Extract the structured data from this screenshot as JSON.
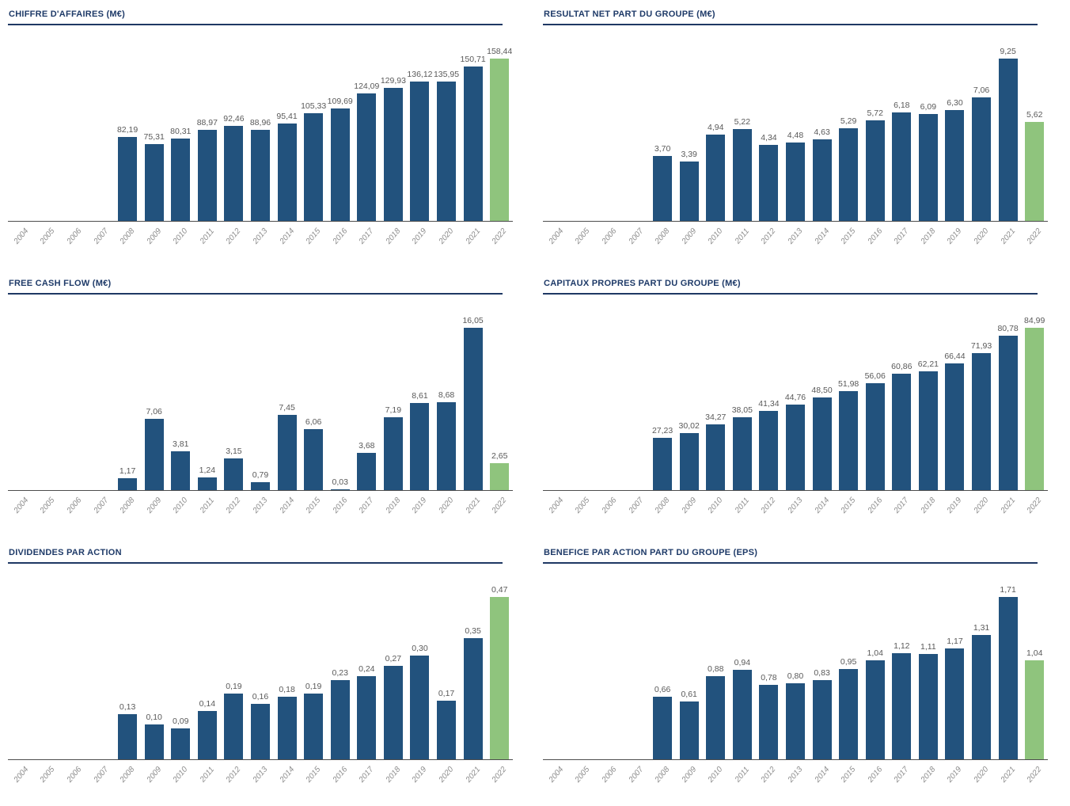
{
  "colors": {
    "bar_primary": "#22527d",
    "bar_highlight": "#8fc47d",
    "title_text": "#1e3a68",
    "title_rule": "#1f3864",
    "axis_line": "#4d4d4d",
    "value_label": "#595959",
    "year_label": "#8c8c8c",
    "background": "#ffffff"
  },
  "chart_data": [
    {
      "type": "bar",
      "title": "CHIFFRE D'AFFAIRES (M€)",
      "categories": [
        "2004",
        "2005",
        "2006",
        "2007",
        "2008",
        "2009",
        "2010",
        "2011",
        "2012",
        "2013",
        "2014",
        "2015",
        "2016",
        "2017",
        "2018",
        "2019",
        "2020",
        "2021",
        "2022"
      ],
      "values": [
        null,
        null,
        null,
        null,
        82.19,
        75.31,
        80.31,
        88.97,
        92.46,
        88.96,
        95.41,
        105.33,
        109.69,
        124.09,
        129.93,
        136.12,
        135.95,
        150.71,
        158.44
      ],
      "labels": [
        null,
        null,
        null,
        null,
        "82,19",
        "75,31",
        "80,31",
        "88,97",
        "92,46",
        "88,96",
        "95,41",
        "105,33",
        "109,69",
        "124,09",
        "129,93",
        "136,12",
        "135,95",
        "150,71",
        "158,44"
      ],
      "highlight_index": 18,
      "xlabel": "",
      "ylabel": "",
      "grid": false,
      "legend": "none",
      "data_labels": "above bars"
    },
    {
      "type": "bar",
      "title": "RESULTAT NET PART DU GROUPE (M€)",
      "categories": [
        "2004",
        "2005",
        "2006",
        "2007",
        "2008",
        "2009",
        "2010",
        "2011",
        "2012",
        "2013",
        "2014",
        "2015",
        "2016",
        "2017",
        "2018",
        "2019",
        "2020",
        "2021",
        "2022"
      ],
      "values": [
        null,
        null,
        null,
        null,
        3.7,
        3.39,
        4.94,
        5.22,
        4.34,
        4.48,
        4.63,
        5.29,
        5.72,
        6.18,
        6.09,
        6.3,
        7.06,
        9.25,
        5.62
      ],
      "labels": [
        null,
        null,
        null,
        null,
        "3,70",
        "3,39",
        "4,94",
        "5,22",
        "4,34",
        "4,48",
        "4,63",
        "5,29",
        "5,72",
        "6,18",
        "6,09",
        "6,30",
        "7,06",
        "9,25",
        "5,62"
      ],
      "highlight_index": 18,
      "xlabel": "",
      "ylabel": "",
      "grid": false,
      "legend": "none",
      "data_labels": "above bars"
    },
    {
      "type": "bar",
      "title": "FREE CASH FLOW (M€)",
      "categories": [
        "2004",
        "2005",
        "2006",
        "2007",
        "2008",
        "2009",
        "2010",
        "2011",
        "2012",
        "2013",
        "2014",
        "2015",
        "2016",
        "2017",
        "2018",
        "2019",
        "2020",
        "2021",
        "2022"
      ],
      "values": [
        null,
        null,
        null,
        null,
        1.17,
        7.06,
        3.81,
        1.24,
        3.15,
        0.79,
        7.45,
        6.06,
        0.03,
        3.68,
        7.19,
        8.61,
        8.68,
        16.05,
        2.65
      ],
      "labels": [
        null,
        null,
        null,
        null,
        "1,17",
        "7,06",
        "3,81",
        "1,24",
        "3,15",
        "0,79",
        "7,45",
        "6,06",
        "0,03",
        "3,68",
        "7,19",
        "8,61",
        "8,68",
        "16,05",
        "2,65"
      ],
      "highlight_index": 18,
      "xlabel": "",
      "ylabel": "",
      "grid": false,
      "legend": "none",
      "data_labels": "above bars"
    },
    {
      "type": "bar",
      "title": "CAPITAUX PROPRES PART DU GROUPE (M€)",
      "categories": [
        "2004",
        "2005",
        "2006",
        "2007",
        "2008",
        "2009",
        "2010",
        "2011",
        "2012",
        "2013",
        "2014",
        "2015",
        "2016",
        "2017",
        "2018",
        "2019",
        "2020",
        "2021",
        "2022"
      ],
      "values": [
        null,
        null,
        null,
        null,
        27.23,
        30.02,
        34.27,
        38.05,
        41.34,
        44.76,
        48.5,
        51.98,
        56.06,
        60.86,
        62.21,
        66.44,
        71.93,
        80.78,
        84.99
      ],
      "labels": [
        null,
        null,
        null,
        null,
        "27,23",
        "30,02",
        "34,27",
        "38,05",
        "41,34",
        "44,76",
        "48,50",
        "51,98",
        "56,06",
        "60,86",
        "62,21",
        "66,44",
        "71,93",
        "80,78",
        "84,99"
      ],
      "highlight_index": 18,
      "xlabel": "",
      "ylabel": "",
      "grid": false,
      "legend": "none",
      "data_labels": "above bars"
    },
    {
      "type": "bar",
      "title": "DIVIDENDES PAR ACTION",
      "categories": [
        "2004",
        "2005",
        "2006",
        "2007",
        "2008",
        "2009",
        "2010",
        "2011",
        "2012",
        "2013",
        "2014",
        "2015",
        "2016",
        "2017",
        "2018",
        "2019",
        "2020",
        "2021",
        "2022"
      ],
      "values": [
        null,
        null,
        null,
        null,
        0.13,
        0.1,
        0.09,
        0.14,
        0.19,
        0.16,
        0.18,
        0.19,
        0.23,
        0.24,
        0.27,
        0.3,
        0.17,
        0.35,
        0.47
      ],
      "labels": [
        null,
        null,
        null,
        null,
        "0,13",
        "0,10",
        "0,09",
        "0,14",
        "0,19",
        "0,16",
        "0,18",
        "0,19",
        "0,23",
        "0,24",
        "0,27",
        "0,30",
        "0,17",
        "0,35",
        "0,47"
      ],
      "highlight_index": 18,
      "xlabel": "",
      "ylabel": "",
      "grid": false,
      "legend": "none",
      "data_labels": "above bars"
    },
    {
      "type": "bar",
      "title": "BENEFICE PAR ACTION PART DU GROUPE (EPS)",
      "categories": [
        "2004",
        "2005",
        "2006",
        "2007",
        "2008",
        "2009",
        "2010",
        "2011",
        "2012",
        "2013",
        "2014",
        "2015",
        "2016",
        "2017",
        "2018",
        "2019",
        "2020",
        "2021",
        "2022"
      ],
      "values": [
        null,
        null,
        null,
        null,
        0.66,
        0.61,
        0.88,
        0.94,
        0.78,
        0.8,
        0.83,
        0.95,
        1.04,
        1.12,
        1.11,
        1.17,
        1.31,
        1.71,
        1.04
      ],
      "labels": [
        null,
        null,
        null,
        null,
        "0,66",
        "0,61",
        "0,88",
        "0,94",
        "0,78",
        "0,80",
        "0,83",
        "0,95",
        "1,04",
        "1,12",
        "1,11",
        "1,17",
        "1,31",
        "1,71",
        "1,04"
      ],
      "highlight_index": 18,
      "xlabel": "",
      "ylabel": "",
      "grid": false,
      "legend": "none",
      "data_labels": "above bars"
    }
  ]
}
